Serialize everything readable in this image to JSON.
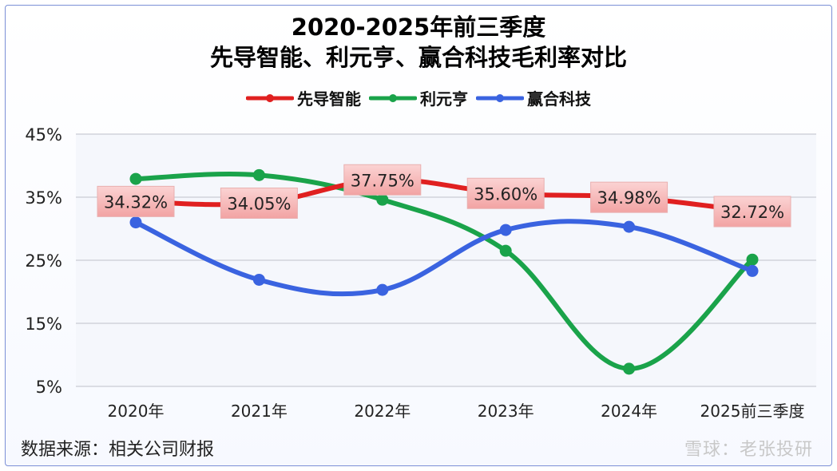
{
  "title_line1": "2020-2025年前三季度",
  "title_line2": "先导智能、利元亨、赢合科技毛利率对比",
  "source": "数据来源：相关公司财报",
  "watermark": "雪球：老张投研",
  "chart_data": {
    "type": "line",
    "title": "2020-2025年前三季度 先导智能、利元亨、赢合科技毛利率对比",
    "xlabel": "",
    "ylabel": "",
    "categories": [
      "2020年",
      "2021年",
      "2022年",
      "2023年",
      "2024年",
      "2025前三季度"
    ],
    "ylim": [
      5,
      45
    ],
    "yticks": [
      5,
      15,
      25,
      35,
      45
    ],
    "ytick_labels": [
      "5%",
      "15%",
      "25%",
      "35%",
      "45%"
    ],
    "grid": true,
    "legend_position": "top",
    "series": [
      {
        "name": "先导智能",
        "color": "#e02020",
        "values": [
          34.32,
          34.05,
          37.75,
          35.6,
          34.98,
          32.72
        ],
        "labels": [
          "34.32%",
          "34.05%",
          "37.75%",
          "35.60%",
          "34.98%",
          "32.72%"
        ]
      },
      {
        "name": "利元亨",
        "color": "#1aa34a",
        "values": [
          37.9,
          38.5,
          34.6,
          26.5,
          7.8,
          25.1
        ]
      },
      {
        "name": "赢合科技",
        "color": "#3a63e0",
        "values": [
          31.0,
          21.9,
          20.3,
          29.8,
          30.3,
          23.3
        ]
      }
    ]
  }
}
